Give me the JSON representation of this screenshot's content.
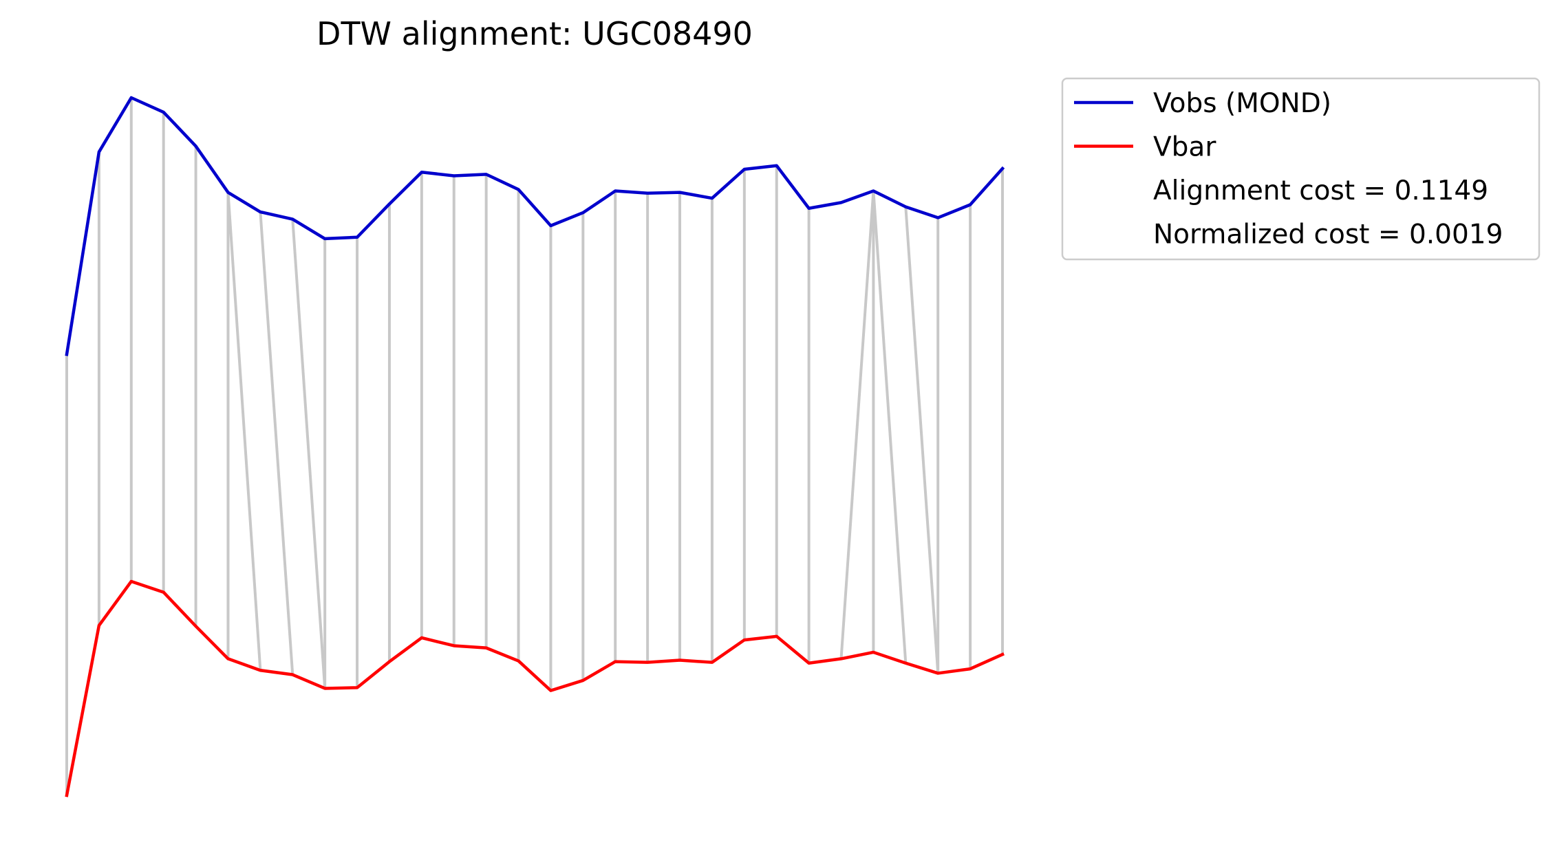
{
  "chart_data": {
    "type": "line",
    "title": "DTW alignment: UGC08490",
    "xlabel": "",
    "ylabel": "",
    "axes_visible": false,
    "grid": false,
    "legend_position": "outside-top-right",
    "x_index": [
      0,
      1,
      2,
      3,
      4,
      5,
      6,
      7,
      8,
      9,
      10,
      11,
      12,
      13,
      14,
      15,
      16,
      17,
      18,
      19,
      20,
      21,
      22,
      23,
      24,
      25,
      26,
      27,
      28,
      29
    ],
    "series": [
      {
        "name": "Vobs (MOND)",
        "color": "#0000cc",
        "values": [
          0.61,
          0.89,
          0.965,
          0.945,
          0.898,
          0.834,
          0.807,
          0.797,
          0.77,
          0.772,
          0.818,
          0.862,
          0.857,
          0.859,
          0.838,
          0.788,
          0.806,
          0.836,
          0.833,
          0.834,
          0.826,
          0.866,
          0.871,
          0.812,
          0.82,
          0.836,
          0.814,
          0.799,
          0.817,
          0.867
        ]
      },
      {
        "name": "Vbar",
        "color": "#ff0000",
        "values": [
          0.0,
          0.235,
          0.296,
          0.281,
          0.234,
          0.189,
          0.173,
          0.167,
          0.148,
          0.149,
          0.185,
          0.218,
          0.207,
          0.204,
          0.186,
          0.145,
          0.159,
          0.185,
          0.184,
          0.187,
          0.184,
          0.215,
          0.22,
          0.183,
          0.189,
          0.198,
          0.183,
          0.169,
          0.175,
          0.195
        ]
      }
    ],
    "alignment_color": "#c8c8c8",
    "alignment_pairs": [
      [
        0,
        0
      ],
      [
        1,
        1
      ],
      [
        2,
        2
      ],
      [
        3,
        3
      ],
      [
        4,
        4
      ],
      [
        5,
        5
      ],
      [
        5,
        6
      ],
      [
        6,
        7
      ],
      [
        7,
        8
      ],
      [
        8,
        8
      ],
      [
        9,
        9
      ],
      [
        10,
        10
      ],
      [
        11,
        11
      ],
      [
        12,
        12
      ],
      [
        13,
        13
      ],
      [
        14,
        14
      ],
      [
        15,
        15
      ],
      [
        16,
        16
      ],
      [
        17,
        17
      ],
      [
        18,
        18
      ],
      [
        19,
        19
      ],
      [
        20,
        20
      ],
      [
        21,
        21
      ],
      [
        22,
        22
      ],
      [
        23,
        23
      ],
      [
        25,
        24
      ],
      [
        25,
        25
      ],
      [
        25,
        26
      ],
      [
        26,
        27
      ],
      [
        27,
        27
      ],
      [
        28,
        28
      ],
      [
        29,
        29
      ]
    ],
    "legend_entries": [
      {
        "label": "Vobs (MOND)",
        "color": "#0000cc",
        "has_line": true
      },
      {
        "label": "Vbar",
        "color": "#ff0000",
        "has_line": true
      },
      {
        "label": "Alignment cost = 0.1149",
        "has_line": false
      },
      {
        "label": "Normalized cost = 0.0019",
        "has_line": false
      }
    ]
  }
}
